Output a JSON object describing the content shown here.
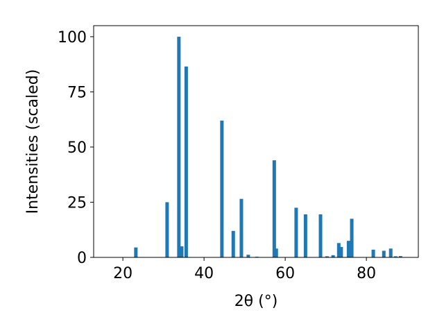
{
  "chart_data": {
    "type": "bar",
    "x": [
      23.2,
      30.9,
      33.8,
      34.5,
      35.6,
      44.4,
      47.2,
      49.2,
      50.9,
      53.0,
      57.3,
      57.8,
      62.7,
      65.0,
      68.7,
      70.3,
      71.8,
      73.2,
      73.8,
      75.6,
      76.4,
      81.7,
      84.3,
      86.0,
      87.2,
      88.4
    ],
    "values": [
      4.5,
      25,
      100,
      5,
      86.5,
      62,
      12,
      26.5,
      1.2,
      0.3,
      44,
      4,
      22.5,
      19.5,
      19.5,
      0.5,
      1,
      6.5,
      4.7,
      7.5,
      17.5,
      3.5,
      3,
      4,
      0.5,
      0.6
    ],
    "color": "#1f77b4",
    "xlabel": "2θ (°)",
    "ylabel": "Intensities (scaled)",
    "xlim": [
      12.8,
      92.8
    ],
    "xticks": [
      20,
      40,
      60,
      80
    ],
    "ylim": [
      0,
      105
    ],
    "yticks": [
      0,
      25,
      50,
      75,
      100
    ],
    "grid": false
  }
}
